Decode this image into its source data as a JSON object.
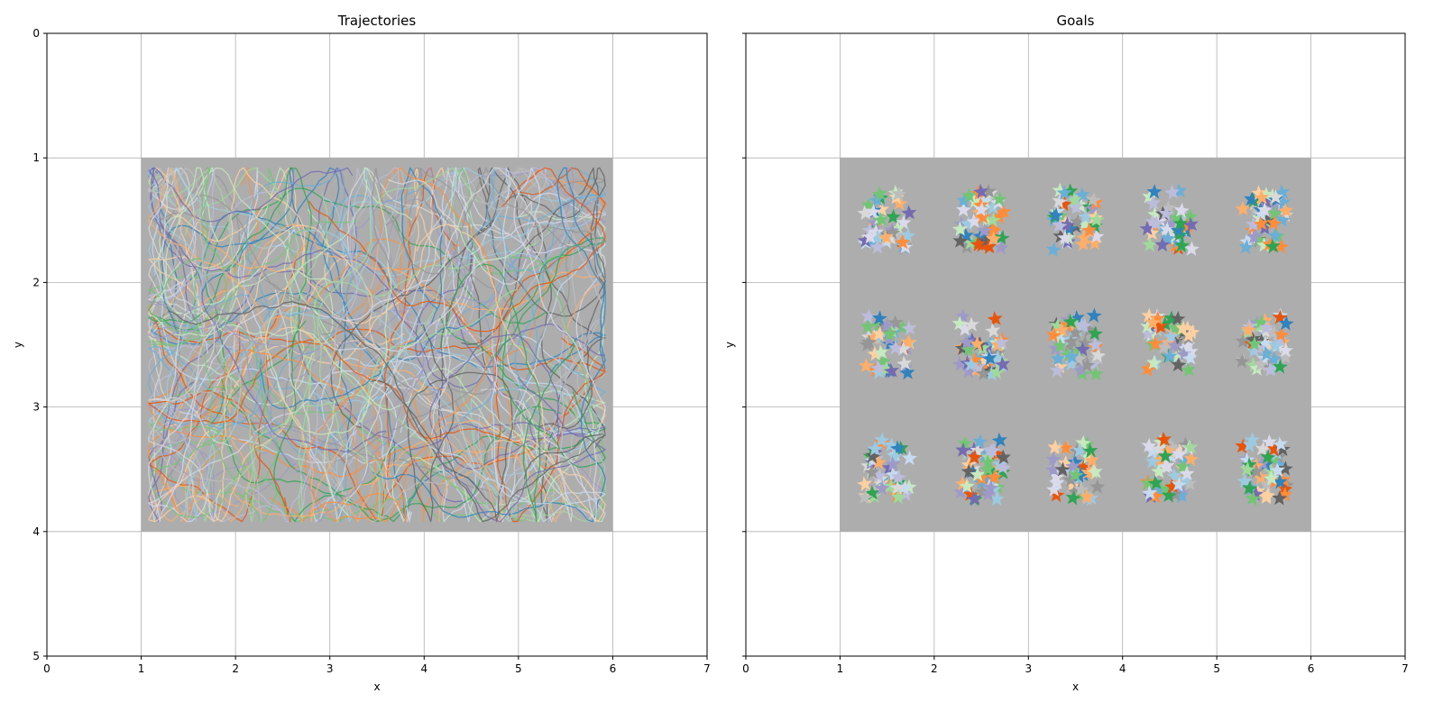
{
  "figure": {
    "background": "#ffffff"
  },
  "chart_data": [
    {
      "type": "line",
      "title": "Trajectories",
      "xlabel": "x",
      "ylabel": "y",
      "xlim": [
        0,
        7
      ],
      "ylim": [
        0,
        5
      ],
      "y_inverted": true,
      "xticks": [
        "0",
        "1",
        "2",
        "3",
        "4",
        "5",
        "6",
        "7"
      ],
      "yticks": [
        "0",
        "1",
        "2",
        "3",
        "4",
        "5"
      ],
      "grid": true,
      "arena": {
        "x": [
          1,
          6
        ],
        "y": [
          1,
          4
        ],
        "color": "#adadad"
      },
      "trajectory_region": {
        "x": [
          1.08,
          5.92
        ],
        "y": [
          1.08,
          3.92
        ]
      },
      "trajectory_count": 120,
      "line_opacity": 0.8,
      "palette": [
        "#3182bd",
        "#6baed6",
        "#9ecae1",
        "#c6dbef",
        "#e6550d",
        "#fd8d3c",
        "#fdae6b",
        "#fdd0a2",
        "#31a354",
        "#74c476",
        "#a1d99b",
        "#c7e9c0",
        "#756bb1",
        "#9e9ac8",
        "#bcbddc",
        "#dadaeb",
        "#636363",
        "#969696",
        "#bdbdbd",
        "#d9d9d9"
      ]
    },
    {
      "type": "scatter",
      "title": "Goals",
      "xlabel": "x",
      "ylabel": "y",
      "xlim": [
        0,
        7
      ],
      "ylim": [
        0,
        5
      ],
      "y_inverted": true,
      "xticks": [
        "0",
        "1",
        "2",
        "3",
        "4",
        "5",
        "6",
        "7"
      ],
      "yticks": [
        "0",
        "1",
        "2",
        "3",
        "4",
        "5"
      ],
      "show_ytick_labels": false,
      "grid": true,
      "marker": "star",
      "arena": {
        "x": [
          1,
          6
        ],
        "y": [
          1,
          4
        ],
        "color": "#adadad"
      },
      "goal_zones": [
        {
          "x": [
            1.2,
            1.8
          ],
          "y": [
            1.2,
            1.8
          ]
        },
        {
          "x": [
            2.2,
            2.8
          ],
          "y": [
            1.2,
            1.8
          ]
        },
        {
          "x": [
            3.2,
            3.8
          ],
          "y": [
            1.2,
            1.8
          ]
        },
        {
          "x": [
            4.2,
            4.8
          ],
          "y": [
            1.2,
            1.8
          ]
        },
        {
          "x": [
            5.2,
            5.8
          ],
          "y": [
            1.2,
            1.8
          ]
        },
        {
          "x": [
            1.2,
            1.8
          ],
          "y": [
            2.2,
            2.8
          ]
        },
        {
          "x": [
            2.2,
            2.8
          ],
          "y": [
            2.2,
            2.8
          ]
        },
        {
          "x": [
            3.2,
            3.8
          ],
          "y": [
            2.2,
            2.8
          ]
        },
        {
          "x": [
            4.2,
            4.8
          ],
          "y": [
            2.2,
            2.8
          ]
        },
        {
          "x": [
            5.2,
            5.8
          ],
          "y": [
            2.2,
            2.8
          ]
        },
        {
          "x": [
            1.2,
            1.8
          ],
          "y": [
            3.2,
            3.8
          ]
        },
        {
          "x": [
            2.2,
            2.8
          ],
          "y": [
            3.2,
            3.8
          ]
        },
        {
          "x": [
            3.2,
            3.8
          ],
          "y": [
            3.2,
            3.8
          ]
        },
        {
          "x": [
            4.2,
            4.8
          ],
          "y": [
            3.2,
            3.8
          ]
        },
        {
          "x": [
            5.2,
            5.8
          ],
          "y": [
            3.2,
            3.8
          ]
        }
      ],
      "goals_per_zone": 45,
      "palette": [
        "#3182bd",
        "#6baed6",
        "#9ecae1",
        "#c6dbef",
        "#e6550d",
        "#fd8d3c",
        "#fdae6b",
        "#fdd0a2",
        "#31a354",
        "#74c476",
        "#a1d99b",
        "#c7e9c0",
        "#756bb1",
        "#9e9ac8",
        "#bcbddc",
        "#dadaeb",
        "#636363",
        "#969696",
        "#bdbdbd",
        "#d9d9d9"
      ]
    }
  ]
}
